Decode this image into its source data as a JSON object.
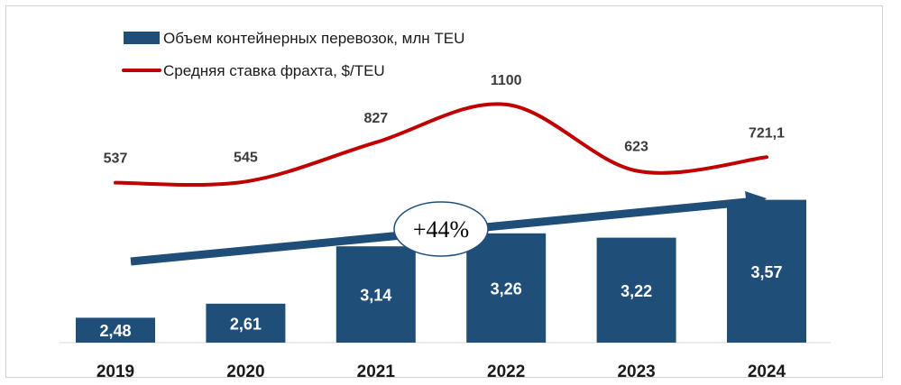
{
  "chart_data": {
    "type": "bar",
    "categories": [
      "2019",
      "2020",
      "2021",
      "2022",
      "2023",
      "2024"
    ],
    "series": [
      {
        "name": "Объем контейнерных перевозок, млн TEU",
        "type": "bar",
        "values": [
          2.48,
          2.61,
          3.14,
          3.26,
          3.22,
          3.57
        ],
        "labels": [
          "2,48",
          "2,61",
          "3,14",
          "3,26",
          "3,22",
          "3,57"
        ],
        "color": "#1f4e79"
      },
      {
        "name": "Средняя ставка фрахта, $/TEU",
        "type": "line",
        "smooth": true,
        "values": [
          537,
          545,
          827,
          1100,
          623,
          721.1
        ],
        "labels": [
          "537",
          "545",
          "827",
          "1100",
          "623",
          "721,1"
        ],
        "color": "#c00000"
      }
    ],
    "annotation": {
      "text": "+44%",
      "arrow_color": "#1f4e79"
    },
    "legend_position": "top-left",
    "grid": false
  }
}
